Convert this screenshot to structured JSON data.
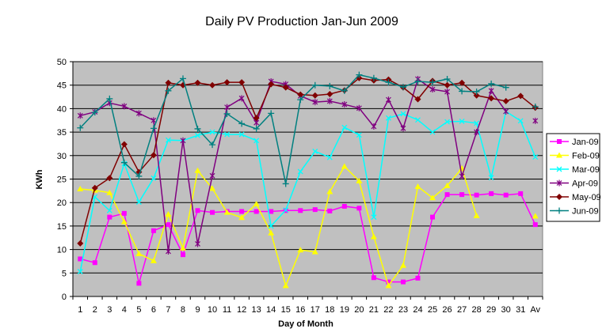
{
  "chart_data": {
    "type": "line",
    "title": "Daily PV Production Jan-Jun 2009",
    "xlabel": "Day of Month",
    "ylabel": "KWh",
    "ylim": [
      0,
      50
    ],
    "yticks": [
      0,
      5,
      10,
      15,
      20,
      25,
      30,
      35,
      40,
      45,
      50
    ],
    "categories": [
      "1",
      "2",
      "3",
      "4",
      "5",
      "6",
      "7",
      "8",
      "9",
      "10",
      "11",
      "12",
      "13",
      "14",
      "15",
      "16",
      "17",
      "18",
      "19",
      "20",
      "21",
      "22",
      "23",
      "24",
      "25",
      "26",
      "27",
      "28",
      "29",
      "30",
      "31",
      "Av"
    ],
    "grid": "horizontal",
    "legend_position": "right",
    "plot_background": "#c0c0c0",
    "series": [
      {
        "name": "Jan-09",
        "color": "#ff00ff",
        "marker": "square",
        "values": [
          8.0,
          7.2,
          16.9,
          17.7,
          2.8,
          14.0,
          15.3,
          8.9,
          18.3,
          17.9,
          18.1,
          18.1,
          18.1,
          18.1,
          18.3,
          18.3,
          18.5,
          18.2,
          19.2,
          18.8,
          4.0,
          3.1,
          3.1,
          3.9,
          16.9,
          21.7,
          21.7,
          21.6,
          21.9,
          21.6,
          21.9,
          15.3
        ]
      },
      {
        "name": "Feb-09",
        "color": "#ffff00",
        "marker": "triangle",
        "values": [
          22.9,
          22.6,
          22.1,
          15.9,
          9.1,
          7.6,
          17.5,
          10.3,
          26.8,
          23.0,
          17.9,
          16.8,
          19.7,
          13.5,
          2.3,
          9.9,
          9.5,
          22.3,
          27.7,
          24.6,
          12.7,
          2.3,
          6.6,
          23.4,
          21.0,
          23.6,
          27.3,
          17.2,
          null,
          null,
          null,
          17.1
        ]
      },
      {
        "name": "Mar-09",
        "color": "#00ffff",
        "marker": "x",
        "values": [
          5.3,
          21.2,
          18.3,
          28.3,
          20.1,
          25.2,
          33.3,
          33.2,
          34.3,
          35.0,
          34.5,
          34.5,
          33.2,
          15.0,
          18.4,
          26.6,
          30.9,
          29.6,
          36.0,
          34.4,
          16.9,
          38.0,
          38.9,
          37.6,
          35.0,
          37.2,
          37.3,
          36.9,
          25.3,
          39.4,
          37.4,
          29.7
        ]
      },
      {
        "name": "Apr-09",
        "color": "#800080",
        "marker": "star",
        "values": [
          38.5,
          39.3,
          41.2,
          40.5,
          39.0,
          37.5,
          9.6,
          33.2,
          11.2,
          25.7,
          40.3,
          42.2,
          37.0,
          45.8,
          45.2,
          42.7,
          41.4,
          41.6,
          40.9,
          40.1,
          36.2,
          41.9,
          35.8,
          46.3,
          44.1,
          43.6,
          25.6,
          35.0,
          43.8,
          39.4,
          null,
          37.4
        ]
      },
      {
        "name": "May-09",
        "color": "#800000",
        "marker": "diamond",
        "values": [
          11.3,
          23.1,
          25.2,
          32.4,
          26.5,
          30.1,
          45.5,
          45.0,
          45.5,
          45.0,
          45.6,
          45.6,
          38.0,
          45.2,
          44.5,
          43.0,
          42.8,
          43.1,
          43.9,
          46.5,
          46.0,
          46.2,
          44.5,
          42.0,
          45.9,
          45.0,
          45.5,
          42.8,
          42.2,
          41.6,
          42.7,
          40.2
        ]
      },
      {
        "name": "Jun-09",
        "color": "#008080",
        "marker": "plus",
        "values": [
          35.9,
          39.2,
          42.1,
          28.5,
          25.6,
          35.8,
          43.8,
          46.4,
          35.7,
          32.3,
          38.9,
          36.8,
          35.7,
          39.0,
          24.0,
          41.9,
          45.0,
          44.8,
          43.8,
          47.2,
          46.5,
          45.6,
          44.6,
          45.8,
          45.6,
          46.3,
          43.7,
          43.6,
          45.3,
          44.5,
          null,
          40.4
        ]
      }
    ]
  }
}
